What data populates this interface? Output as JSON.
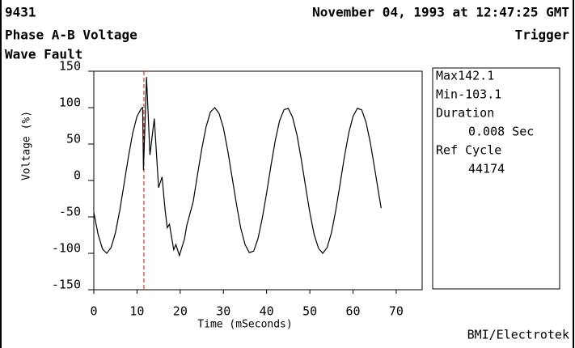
{
  "header": {
    "id": "9431",
    "timestamp": "November 04, 1993 at 12:47:25 GMT",
    "subtitle": "Trigger"
  },
  "chart_data": {
    "type": "line",
    "title": "Phase A-B Voltage",
    "subtitle": "Wave Fault",
    "x_label": "Time (mSeconds)",
    "y_label": "Voltage (%)",
    "xlim": [
      0,
      76
    ],
    "xticks": [
      0,
      10,
      20,
      30,
      40,
      50,
      60,
      70
    ],
    "ylim": [
      -150,
      150
    ],
    "yticks": [
      150,
      100,
      50,
      0,
      -50,
      -100,
      -150
    ],
    "marker_x": 11.6,
    "marker_color": "#d01010",
    "x": [
      0,
      1,
      2,
      3,
      4,
      5,
      6,
      7,
      8,
      9,
      10,
      11,
      11.3,
      11.5,
      12.2,
      13,
      14,
      15,
      15.8,
      16.5,
      17,
      17.5,
      18.5,
      19,
      19.8,
      21,
      21.5,
      23,
      24,
      25,
      26,
      27,
      28,
      29,
      30,
      31,
      32,
      33,
      34,
      35,
      36,
      37,
      38,
      39,
      40,
      41,
      42,
      43,
      44,
      45,
      46,
      47,
      48,
      49,
      50,
      51,
      52,
      53,
      54,
      55,
      56,
      57,
      58,
      59,
      60,
      61,
      62,
      63,
      64,
      65,
      66,
      66.5
    ],
    "series": [
      {
        "name": "Phase A-B",
        "color": "#000000",
        "values": [
          -44,
          -74,
          -94,
          -100,
          -92,
          -72,
          -41,
          -5,
          32,
          65,
          88,
          99,
          100,
          14,
          142,
          35,
          85,
          -10,
          5,
          -40,
          -65,
          -60,
          -95,
          -88,
          -103,
          -80,
          -62,
          -29,
          8,
          44,
          74,
          94,
          100,
          92,
          72,
          41,
          5,
          -32,
          -65,
          -88,
          -99,
          -97,
          -80,
          -52,
          -17,
          20,
          55,
          82,
          97,
          99,
          87,
          63,
          30,
          -8,
          -44,
          -74,
          -93,
          -100,
          -92,
          -72,
          -41,
          -5,
          32,
          65,
          88,
          99,
          97,
          80,
          52,
          17,
          -20,
          -38
        ]
      }
    ]
  },
  "info_panel": {
    "lines": [
      "Max142.1",
      "Min-103.1",
      "Duration",
      "0.008 Sec",
      "Ref Cycle",
      "44174"
    ]
  },
  "footer": "BMI/Electrotek"
}
